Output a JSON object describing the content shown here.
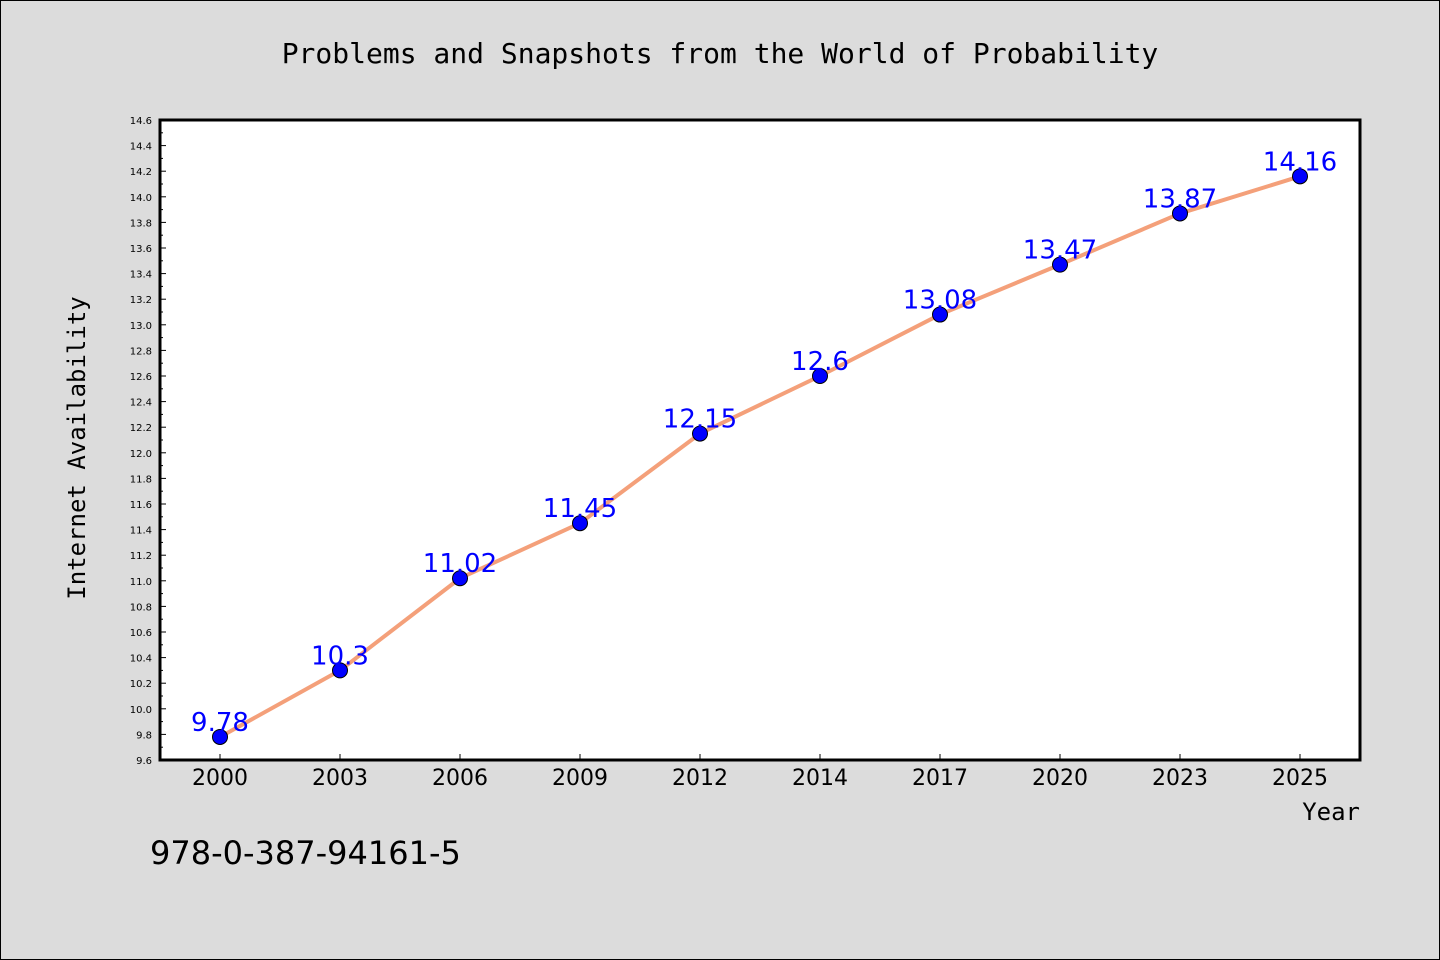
{
  "chart_data": {
    "type": "line",
    "title": "Problems and Snapshots from the World of Probability",
    "xlabel": "Year",
    "ylabel": "Internet Availability",
    "categories": [
      "2000",
      "2003",
      "2006",
      "2009",
      "2012",
      "2014",
      "2017",
      "2020",
      "2023",
      "2025"
    ],
    "series": [
      {
        "values": [
          9.78,
          10.3,
          11.02,
          11.45,
          12.15,
          12.6,
          13.08,
          13.47,
          13.87,
          14.16
        ],
        "data_labels": [
          "9.78",
          "10.3",
          "11.02",
          "11.45",
          "12.15",
          "12.6",
          "13.08",
          "13.47",
          "13.87",
          "14.16"
        ],
        "line_color": "#f4a07a",
        "marker_color": "#0000ff",
        "label_color": "#0000ff"
      }
    ],
    "ylim": [
      9.6,
      14.6
    ],
    "y_ticks": [
      "9.6",
      "9.8",
      "10.0",
      "10.2",
      "10.4",
      "10.6",
      "10.8",
      "11.0",
      "11.2",
      "11.4",
      "11.6",
      "11.8",
      "12.0",
      "12.2",
      "12.4",
      "12.6",
      "12.8",
      "13.0",
      "13.2",
      "13.4",
      "13.6",
      "13.8",
      "14.0",
      "14.2",
      "14.4",
      "14.6"
    ],
    "grid": false,
    "legend": "none",
    "background_color": "#dcdcdc",
    "plot_background": "#ffffff"
  },
  "footer_text": "978-0-387-94161-5"
}
